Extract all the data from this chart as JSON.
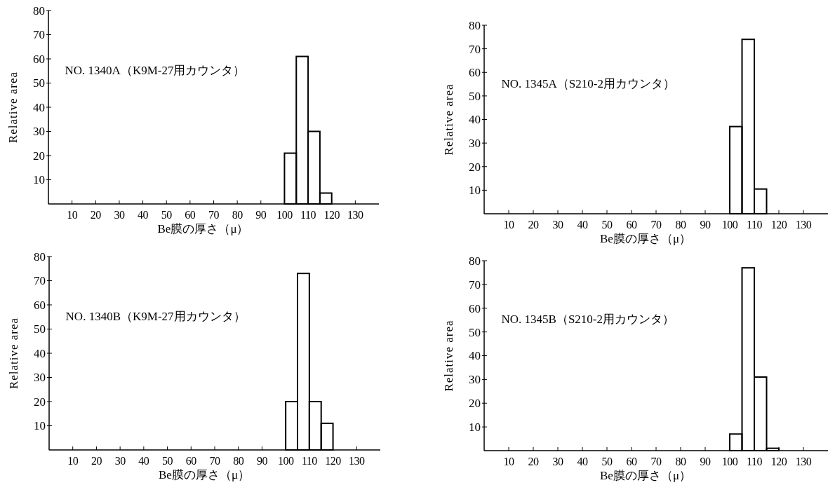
{
  "chart_data": [
    {
      "type": "histogram",
      "title": "NO. 1340A（K9M-27用カウンタ）",
      "xlabel": "Be膜の厚さ（μ）",
      "ylabel": "Relative area",
      "bins": [
        100,
        105,
        110,
        115,
        120
      ],
      "values": [
        21,
        61,
        30,
        4.5
      ],
      "color": "#000000",
      "xlim": [
        0,
        140
      ],
      "xticks": [
        10,
        20,
        30,
        40,
        50,
        60,
        70,
        80,
        90,
        100,
        110,
        120,
        130
      ],
      "ylim": [
        0,
        80
      ],
      "yticks": [
        10,
        20,
        30,
        40,
        50,
        60,
        70,
        80
      ],
      "grid": false
    },
    {
      "type": "histogram",
      "title": "NO. 1345A（S210-2用カウンタ）",
      "xlabel": "Be膜の厚さ（μ）",
      "ylabel": "Relative area",
      "bins": [
        100,
        105,
        110,
        115
      ],
      "values": [
        37,
        74,
        10.5
      ],
      "color": "#000000",
      "xlim": [
        0,
        140
      ],
      "xticks": [
        10,
        20,
        30,
        40,
        50,
        60,
        70,
        80,
        90,
        100,
        110,
        120,
        130
      ],
      "ylim": [
        0,
        80
      ],
      "yticks": [
        10,
        20,
        30,
        40,
        50,
        60,
        70,
        80
      ],
      "grid": false
    },
    {
      "type": "histogram",
      "title": "NO. 1340B（K9M-27用カウンタ）",
      "xlabel": "Be膜の厚さ（μ）",
      "ylabel": "Relative area",
      "bins": [
        100,
        105,
        110,
        115,
        120
      ],
      "values": [
        20,
        73,
        20,
        11
      ],
      "color": "#000000",
      "xlim": [
        0,
        140
      ],
      "xticks": [
        10,
        20,
        30,
        40,
        50,
        60,
        70,
        80,
        90,
        100,
        110,
        120,
        130
      ],
      "ylim": [
        0,
        80
      ],
      "yticks": [
        10,
        20,
        30,
        40,
        50,
        60,
        70,
        80
      ],
      "grid": false
    },
    {
      "type": "histogram",
      "title": "NO. 1345B（S210-2用カウンタ）",
      "xlabel": "Be膜の厚さ（μ）",
      "ylabel": "Relative area",
      "bins": [
        100,
        105,
        110,
        115,
        120
      ],
      "values": [
        7,
        77,
        31,
        1
      ],
      "color": "#000000",
      "xlim": [
        0,
        140
      ],
      "xticks": [
        10,
        20,
        30,
        40,
        50,
        60,
        70,
        80,
        90,
        100,
        110,
        120,
        130
      ],
      "ylim": [
        0,
        80
      ],
      "yticks": [
        10,
        20,
        30,
        40,
        50,
        60,
        70,
        80
      ],
      "grid": false
    }
  ]
}
